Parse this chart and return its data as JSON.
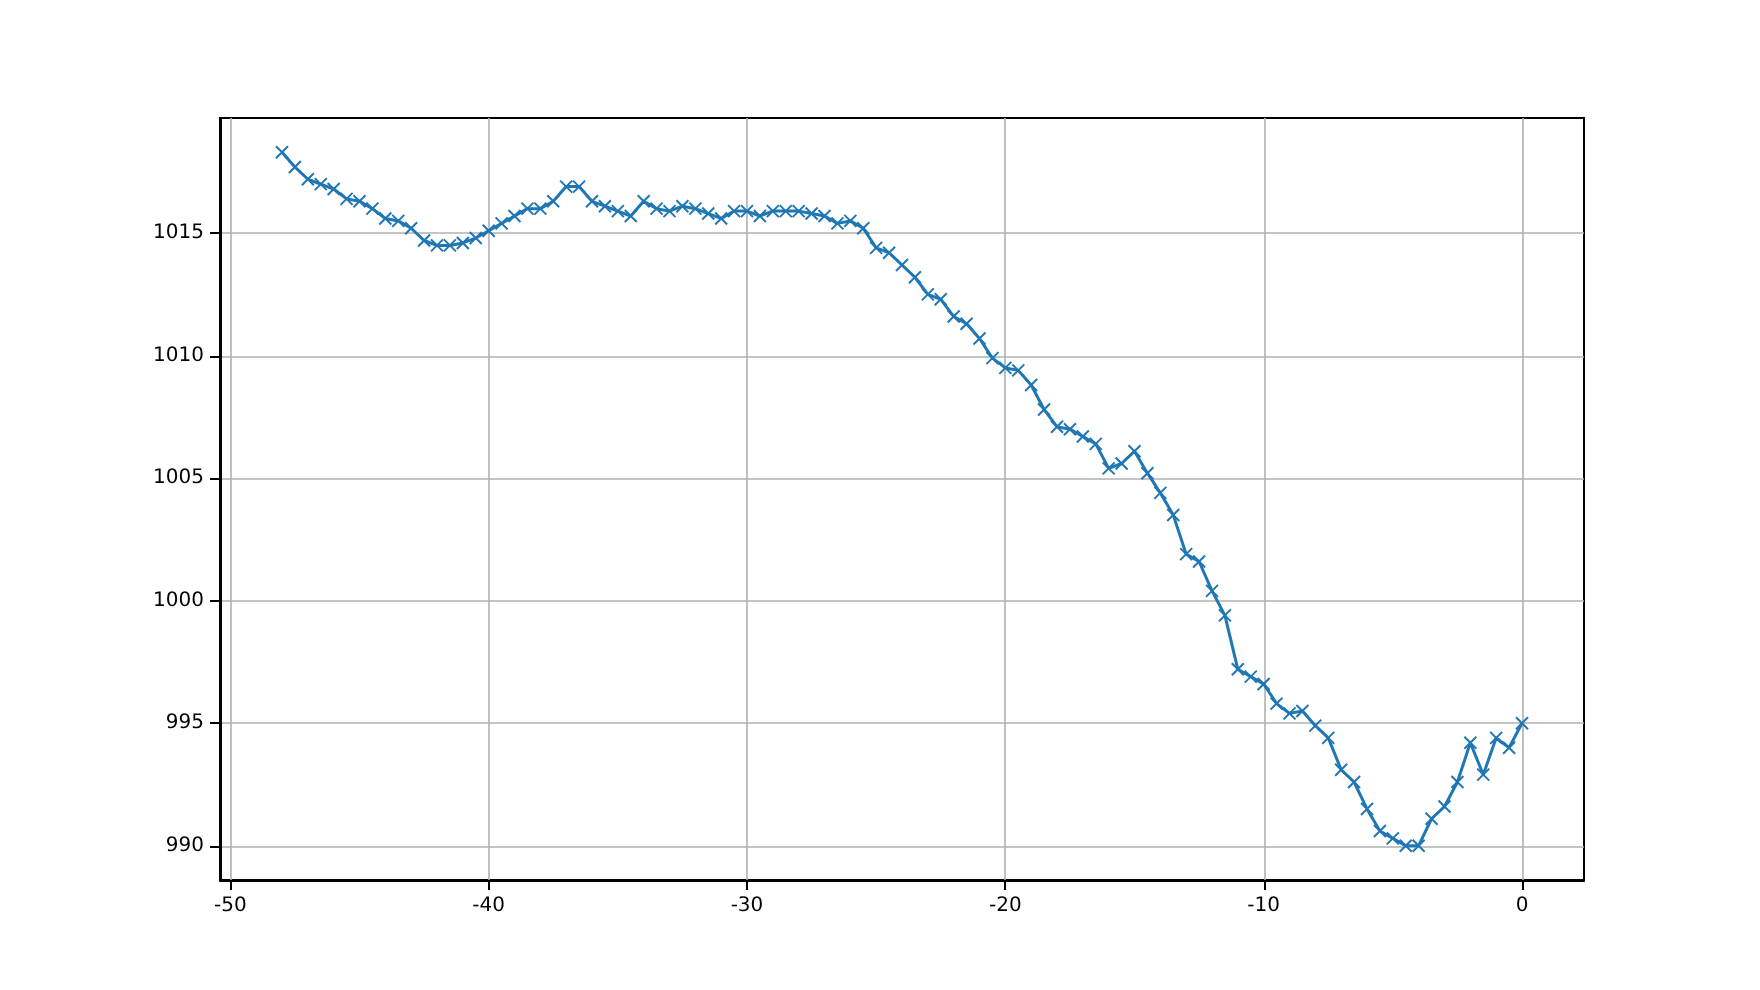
{
  "chart_data": {
    "type": "line",
    "marker": "cross",
    "grid": true,
    "x": [
      -48,
      -47.5,
      -47,
      -46.5,
      -46,
      -45.5,
      -45,
      -44.5,
      -44,
      -43.5,
      -43,
      -42.5,
      -42,
      -41.5,
      -41,
      -40.5,
      -40,
      -39.5,
      -39,
      -38.5,
      -38,
      -37.5,
      -37,
      -36.5,
      -36,
      -35.5,
      -35,
      -34.5,
      -34,
      -33.5,
      -33,
      -32.5,
      -32,
      -31.5,
      -31,
      -30.5,
      -30,
      -29.5,
      -29,
      -28.5,
      -28,
      -27.5,
      -27,
      -26.5,
      -26,
      -25.5,
      -25,
      -24.5,
      -24,
      -23.5,
      -23,
      -22.5,
      -22,
      -21.5,
      -21,
      -20.5,
      -20,
      -19.5,
      -19,
      -18.5,
      -18,
      -17.5,
      -17,
      -16.5,
      -16,
      -15.5,
      -15,
      -14.5,
      -14,
      -13.5,
      -13,
      -12.5,
      -12,
      -11.5,
      -11,
      -10.5,
      -10,
      -9.5,
      -9,
      -8.5,
      -8,
      -7.5,
      -7,
      -6.5,
      -6,
      -5.5,
      -5,
      -4.5,
      -4,
      -3.5,
      -3,
      -2.5,
      -2,
      -1.5,
      -1,
      -0.5,
      0
    ],
    "series": [
      {
        "color": "#1f77b4",
        "values": [
          1018.3,
          1017.7,
          1017.2,
          1017.0,
          1016.8,
          1016.4,
          1016.3,
          1016.0,
          1015.6,
          1015.5,
          1015.2,
          1014.7,
          1014.5,
          1014.5,
          1014.6,
          1014.8,
          1015.1,
          1015.4,
          1015.7,
          1016.0,
          1016.0,
          1016.3,
          1016.9,
          1016.9,
          1016.3,
          1016.1,
          1015.9,
          1015.7,
          1016.3,
          1016.0,
          1015.9,
          1016.1,
          1016.0,
          1015.8,
          1015.6,
          1015.9,
          1015.9,
          1015.7,
          1015.9,
          1015.9,
          1015.9,
          1015.8,
          1015.7,
          1015.4,
          1015.5,
          1015.2,
          1014.4,
          1014.2,
          1013.7,
          1013.2,
          1012.5,
          1012.3,
          1011.6,
          1011.3,
          1010.7,
          1009.9,
          1009.5,
          1009.4,
          1008.8,
          1007.8,
          1007.1,
          1007.0,
          1006.7,
          1006.4,
          1005.4,
          1005.6,
          1006.1,
          1005.2,
          1004.4,
          1003.5,
          1001.9,
          1001.6,
          1000.4,
          999.4,
          997.2,
          996.9,
          996.6,
          995.8,
          995.4,
          995.5,
          994.9,
          994.4,
          993.1,
          992.6,
          991.5,
          990.6,
          990.3,
          990.0,
          990.0,
          991.1,
          991.6,
          992.6,
          994.2,
          992.9,
          994.4,
          994.0,
          995.0
        ]
      }
    ],
    "xlim": [
      -50.4,
      2.4
    ],
    "xticks": [
      -50,
      -40,
      -30,
      -20,
      -10,
      0
    ],
    "ylim": [
      988.6,
      1019.7
    ],
    "yticks": [
      990,
      995,
      1000,
      1005,
      1010,
      1015
    ]
  }
}
